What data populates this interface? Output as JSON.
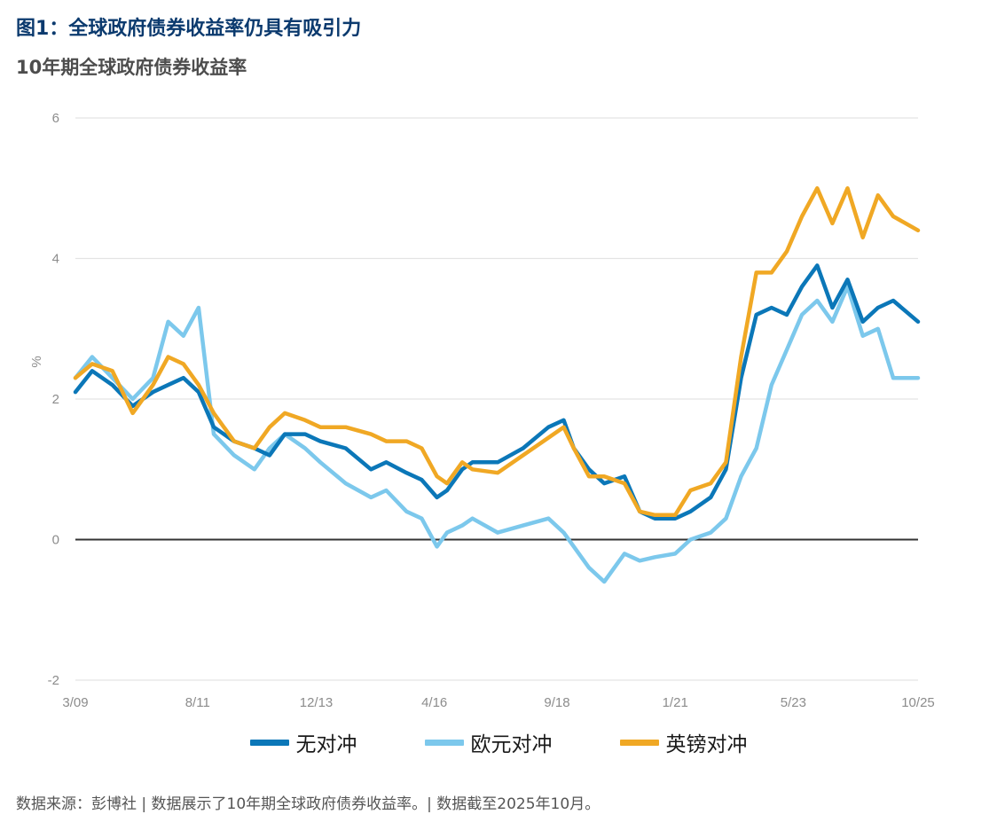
{
  "title": "图1：全球政府债券收益率仍具有吸引力",
  "subtitle": "10年期全球政府债券收益率",
  "source_note": "数据来源：彭博社 | 数据展示了10年期全球政府债券收益率。| 数据截至2025年10月。",
  "colors": {
    "title": "#0b3a6e",
    "grid": "#e3e3e3",
    "zero_line": "#333333"
  },
  "chart_data": {
    "type": "line",
    "title": "10年期全球政府债券收益率",
    "ylabel": "%",
    "ylim": [
      -2,
      6
    ],
    "yticks": [
      6,
      4,
      2,
      0,
      -2
    ],
    "xlim": [
      2009.17,
      2025.79
    ],
    "xticks": [
      {
        "label": "3/09",
        "t": 2009.17
      },
      {
        "label": "8/11",
        "t": 2011.58
      },
      {
        "label": "12/13",
        "t": 2013.92
      },
      {
        "label": "4/16",
        "t": 2016.25
      },
      {
        "label": "9/18",
        "t": 2018.67
      },
      {
        "label": "1/21",
        "t": 2021.0
      },
      {
        "label": "5/23",
        "t": 2023.33
      },
      {
        "label": "10/25",
        "t": 2025.79
      }
    ],
    "grid": true,
    "legend_position": "bottom",
    "series": [
      {
        "name": "无对冲",
        "color": "#0b77b8",
        "x": [
          2009.17,
          2009.5,
          2009.9,
          2010.3,
          2010.7,
          2011.0,
          2011.3,
          2011.6,
          2011.9,
          2012.3,
          2012.7,
          2013.0,
          2013.3,
          2013.7,
          2014.0,
          2014.5,
          2015.0,
          2015.3,
          2015.7,
          2016.0,
          2016.3,
          2016.5,
          2016.8,
          2017.0,
          2017.5,
          2018.0,
          2018.5,
          2018.8,
          2019.0,
          2019.3,
          2019.6,
          2020.0,
          2020.3,
          2020.6,
          2021.0,
          2021.3,
          2021.7,
          2022.0,
          2022.3,
          2022.6,
          2022.9,
          2023.2,
          2023.5,
          2023.8,
          2024.1,
          2024.4,
          2024.7,
          2025.0,
          2025.3,
          2025.79
        ],
        "y": [
          2.1,
          2.4,
          2.2,
          1.9,
          2.1,
          2.2,
          2.3,
          2.1,
          1.6,
          1.4,
          1.3,
          1.2,
          1.5,
          1.5,
          1.4,
          1.3,
          1.0,
          1.1,
          0.95,
          0.85,
          0.6,
          0.7,
          1.0,
          1.1,
          1.1,
          1.3,
          1.6,
          1.7,
          1.3,
          1.0,
          0.8,
          0.9,
          0.4,
          0.3,
          0.3,
          0.4,
          0.6,
          1.0,
          2.3,
          3.2,
          3.3,
          3.2,
          3.6,
          3.9,
          3.3,
          3.7,
          3.1,
          3.3,
          3.4,
          3.1
        ]
      },
      {
        "name": "欧元对冲",
        "color": "#7cc8ec",
        "x": [
          2009.17,
          2009.5,
          2009.9,
          2010.3,
          2010.7,
          2011.0,
          2011.3,
          2011.6,
          2011.9,
          2012.3,
          2012.7,
          2013.0,
          2013.3,
          2013.7,
          2014.0,
          2014.5,
          2015.0,
          2015.3,
          2015.7,
          2016.0,
          2016.3,
          2016.5,
          2016.8,
          2017.0,
          2017.5,
          2018.0,
          2018.5,
          2018.8,
          2019.0,
          2019.3,
          2019.6,
          2020.0,
          2020.3,
          2020.6,
          2021.0,
          2021.3,
          2021.7,
          2022.0,
          2022.3,
          2022.6,
          2022.9,
          2023.2,
          2023.5,
          2023.8,
          2024.1,
          2024.4,
          2024.7,
          2025.0,
          2025.3,
          2025.79
        ],
        "y": [
          2.3,
          2.6,
          2.3,
          2.0,
          2.3,
          3.1,
          2.9,
          3.3,
          1.5,
          1.2,
          1.0,
          1.3,
          1.5,
          1.3,
          1.1,
          0.8,
          0.6,
          0.7,
          0.4,
          0.3,
          -0.1,
          0.1,
          0.2,
          0.3,
          0.1,
          0.2,
          0.3,
          0.1,
          -0.1,
          -0.4,
          -0.6,
          -0.2,
          -0.3,
          -0.25,
          -0.2,
          0.0,
          0.1,
          0.3,
          0.9,
          1.3,
          2.2,
          2.7,
          3.2,
          3.4,
          3.1,
          3.6,
          2.9,
          3.0,
          2.3,
          2.3
        ]
      },
      {
        "name": "英镑对冲",
        "color": "#f0a824",
        "x": [
          2009.17,
          2009.5,
          2009.9,
          2010.3,
          2010.7,
          2011.0,
          2011.3,
          2011.6,
          2011.9,
          2012.3,
          2012.7,
          2013.0,
          2013.3,
          2013.7,
          2014.0,
          2014.5,
          2015.0,
          2015.3,
          2015.7,
          2016.0,
          2016.3,
          2016.5,
          2016.8,
          2017.0,
          2017.5,
          2018.0,
          2018.5,
          2018.8,
          2019.0,
          2019.3,
          2019.6,
          2020.0,
          2020.3,
          2020.6,
          2021.0,
          2021.3,
          2021.7,
          2022.0,
          2022.3,
          2022.6,
          2022.9,
          2023.2,
          2023.5,
          2023.8,
          2024.1,
          2024.4,
          2024.7,
          2025.0,
          2025.3,
          2025.79
        ],
        "y": [
          2.3,
          2.5,
          2.4,
          1.8,
          2.2,
          2.6,
          2.5,
          2.2,
          1.8,
          1.4,
          1.3,
          1.6,
          1.8,
          1.7,
          1.6,
          1.6,
          1.5,
          1.4,
          1.4,
          1.3,
          0.9,
          0.8,
          1.1,
          1.0,
          0.95,
          1.2,
          1.45,
          1.6,
          1.3,
          0.9,
          0.9,
          0.8,
          0.4,
          0.35,
          0.35,
          0.7,
          0.8,
          1.1,
          2.6,
          3.8,
          3.8,
          4.1,
          4.6,
          5.0,
          4.5,
          5.0,
          4.3,
          4.9,
          4.6,
          4.4
        ]
      }
    ]
  }
}
